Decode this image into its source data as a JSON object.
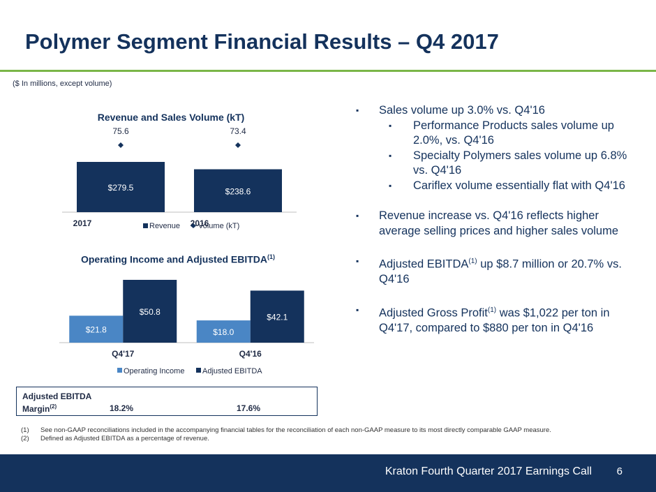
{
  "page": {
    "title": "Polymer Segment Financial Results – Q4 2017",
    "units_note": "($ In millions, except volume)",
    "footer_text": "Kraton Fourth Quarter 2017 Earnings Call",
    "page_number": "6"
  },
  "chart_data": [
    {
      "type": "bar",
      "title": "Revenue and Sales Volume (kT)",
      "categories": [
        "2017",
        "2016"
      ],
      "series": [
        {
          "name": "Revenue",
          "values": [
            279.5,
            238.6
          ],
          "labels": [
            "$279.5",
            "$238.6"
          ],
          "color": "#14325c"
        },
        {
          "name": "Volume (kT)",
          "type": "scatter",
          "values": [
            75.6,
            73.4
          ],
          "labels": [
            "75.6",
            "73.4"
          ],
          "color": "#14325c"
        }
      ],
      "legend_position": "bottom"
    },
    {
      "type": "bar",
      "title": "Operating Income and Adjusted EBITDA",
      "title_superscript": "(1)",
      "categories": [
        "Q4'17",
        "Q4'16"
      ],
      "series": [
        {
          "name": "Operating Income",
          "values": [
            21.8,
            18.0
          ],
          "labels": [
            "$21.8",
            "$18.0"
          ],
          "color": "#4a86c5"
        },
        {
          "name": "Adjusted EBITDA",
          "values": [
            50.8,
            42.1
          ],
          "labels": [
            "$50.8",
            "$42.1"
          ],
          "color": "#14325c"
        }
      ],
      "legend_position": "bottom"
    }
  ],
  "margin_box": {
    "label_line1": "Adjusted EBITDA",
    "label_line2": "Margin",
    "label_sup": "(2)",
    "values": [
      "18.2%",
      "17.6%"
    ]
  },
  "bullets": {
    "marker": "▪",
    "b1": "Sales volume up 3.0% vs. Q4'16",
    "b1_subs": [
      "Performance Products sales volume up 2.0%, vs. Q4'16",
      "Specialty Polymers sales volume up 6.8% vs. Q4'16",
      "Cariflex volume essentially flat with Q4'16"
    ],
    "b2": "Revenue increase vs. Q4'16 reflects higher average selling prices and higher sales volume",
    "b3_pre": "Adjusted EBITDA",
    "b3_sup": "(1)",
    "b3_post": " up $8.7 million or 20.7% vs. Q4'16",
    "b4_pre": "Adjusted Gross Profit",
    "b4_sup": "(1)",
    "b4_post": " was $1,022 per ton in Q4'17, compared to $880 per ton in Q4'16"
  },
  "footnotes": [
    {
      "num": "(1)",
      "text": "See non-GAAP reconciliations included in the accompanying financial tables for the reconciliation of each non-GAAP measure to its most directly comparable GAAP measure."
    },
    {
      "num": "(2)",
      "text": "Defined as Adjusted EBITDA as a percentage of revenue."
    }
  ]
}
